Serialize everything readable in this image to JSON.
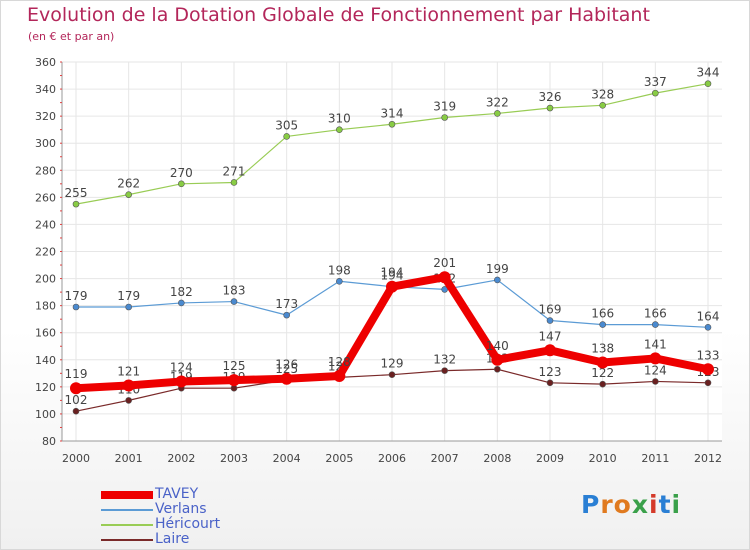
{
  "header": {
    "title": "Evolution de la Dotation Globale de Fonctionnement par Habitant",
    "subtitle": "(en € et par an)"
  },
  "logo": {
    "text": "Proxiti",
    "letters": [
      "P",
      "r",
      "o",
      "x",
      "i",
      "t",
      "i"
    ],
    "colors": [
      "#2a7fd4",
      "#e07a1f",
      "#e07a1f",
      "#3aa04a",
      "#d43a2a",
      "#2a7fd4",
      "#3aa04a"
    ]
  },
  "colors": {
    "title": "#b3265a",
    "legend_text": "#4a62c8",
    "axis_label": "#444444",
    "grid": "#e6e6e6"
  },
  "chart_data": {
    "type": "line",
    "x": [
      "2000",
      "2001",
      "2002",
      "2003",
      "2004",
      "2005",
      "2006",
      "2007",
      "2008",
      "2009",
      "2010",
      "2011",
      "2012"
    ],
    "ylim": [
      80,
      360
    ],
    "yticks": [
      80,
      100,
      120,
      140,
      160,
      180,
      200,
      220,
      240,
      260,
      280,
      300,
      320,
      340,
      360
    ],
    "grid": true,
    "legend_position": "bottom-left",
    "series": [
      {
        "name": "Héricourt",
        "color": "#99cc55",
        "marker": "#88cc44",
        "width": 1.2,
        "values": [
          255,
          262,
          270,
          271,
          305,
          310,
          314,
          319,
          322,
          326,
          328,
          337,
          344
        ],
        "labels": [
          "255",
          "262",
          "270",
          "271",
          "305",
          "310",
          "314",
          "319",
          "322",
          "326",
          "328",
          "337",
          "344"
        ]
      },
      {
        "name": "Verlans",
        "color": "#5b9bd5",
        "marker": "#4a8ad0",
        "width": 1.2,
        "values": [
          179,
          179,
          182,
          183,
          173,
          198,
          194,
          192,
          199,
          169,
          166,
          166,
          164
        ],
        "labels": [
          "179",
          "179",
          "182",
          "183",
          "173",
          "198",
          "194",
          "192",
          "199",
          "169",
          "166",
          "166",
          "164"
        ]
      },
      {
        "name": "Laire",
        "color": "#7a2a2a",
        "marker": "#6a2020",
        "width": 1.2,
        "values": [
          102,
          110,
          119,
          119,
          125,
          127,
          129,
          132,
          133,
          123,
          122,
          124,
          123
        ],
        "labels": [
          "102",
          "110",
          "119",
          "119",
          "125",
          "127",
          "129",
          "132",
          "133",
          "123",
          "122",
          "124",
          "123"
        ]
      },
      {
        "name": "TAVEY",
        "color": "#ee0000",
        "marker": "#ee0000",
        "width": 8,
        "values": [
          119,
          121,
          124,
          125,
          126,
          128,
          194,
          201,
          140,
          147,
          138,
          141,
          133
        ],
        "labels": [
          "119",
          "121",
          "124",
          "125",
          "126",
          "128",
          "194",
          "201",
          "140",
          "147",
          "138",
          "141",
          "133"
        ]
      }
    ],
    "legend": [
      {
        "name": "TAVEY",
        "color": "#ee0000",
        "width": 8
      },
      {
        "name": "Verlans",
        "color": "#5b9bd5",
        "width": 2
      },
      {
        "name": "Héricourt",
        "color": "#99cc55",
        "width": 2
      },
      {
        "name": "Laire",
        "color": "#7a2a2a",
        "width": 2
      }
    ]
  }
}
